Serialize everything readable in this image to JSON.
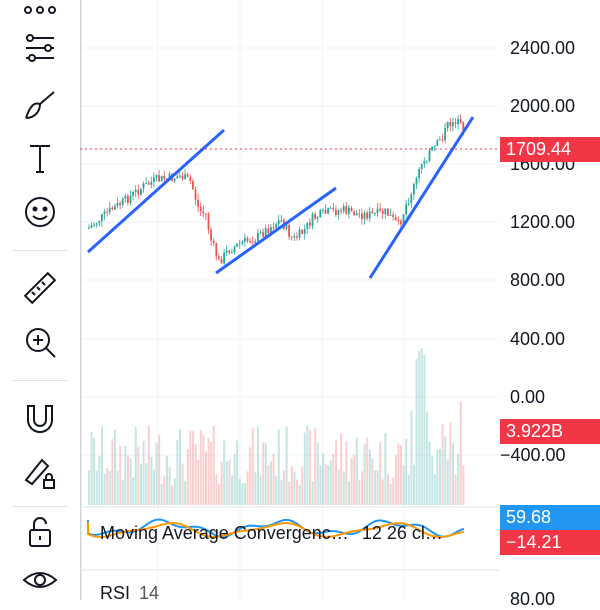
{
  "toolbar": {
    "icons": [
      "more-dots-icon",
      "indicators-icon",
      "brush-icon",
      "text-icon",
      "emoji-icon",
      "ruler-icon",
      "zoom-in-icon",
      "magnet-icon",
      "lock-drawing-icon",
      "unlock-icon",
      "eye-icon"
    ]
  },
  "price_axis": {
    "labels": [
      "2400.00",
      "2000.00",
      "1600.00",
      "1200.00",
      "800.00"
    ]
  },
  "volume_axis": {
    "labels": [
      "400.00",
      "0.00",
      "−400.00"
    ]
  },
  "tags": {
    "last_price": "1709.44",
    "volume": "3.922B",
    "macd_value": "59.68",
    "macd_hist": "−14.21"
  },
  "indicators": {
    "macd_title": "Moving Average Convergenc…",
    "macd_params": "12 26 cl…",
    "rsi_title": "RSI",
    "rsi_param": "14",
    "rsi_axis_label": "80.00"
  },
  "colors": {
    "up": "#26a69a",
    "down": "#ef5350",
    "trendline": "#2962ff",
    "price_tag": "#f23645",
    "macd_tag": "#2196f3"
  }
}
